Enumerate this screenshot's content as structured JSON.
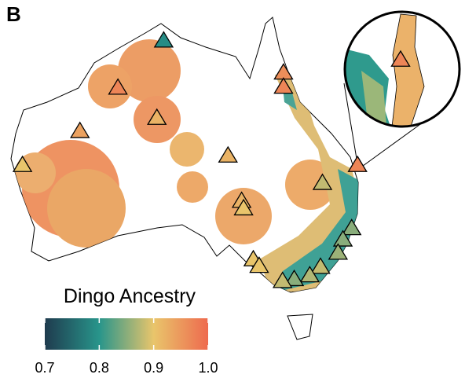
{
  "panel_label": "B",
  "legend": {
    "title": "Dingo Ancestry",
    "range": [
      0.7,
      1
    ],
    "ticks": [
      0.7,
      0.8,
      0.9,
      {
        "value": 1,
        "label": "1.0"
      }
    ],
    "colormap": [
      "#1f3b4e",
      "#28958b",
      "#e9c56b",
      "#ee6a4e"
    ]
  },
  "sites": [
    {
      "lon": 129.0,
      "lat": -11.8,
      "ancestry": 0.79
    },
    {
      "lon": 124.3,
      "lat": -16.8,
      "ancestry": 0.97
    },
    {
      "lon": 141.3,
      "lat": -15.2,
      "ancestry": 0.96
    },
    {
      "lon": 141.3,
      "lat": -16.7,
      "ancestry": 0.97
    },
    {
      "lon": 128.3,
      "lat": -20.0,
      "ancestry": 0.92
    },
    {
      "lon": 120.4,
      "lat": -21.4,
      "ancestry": 0.94
    },
    {
      "lon": 135.6,
      "lat": -24.0,
      "ancestry": 0.92
    },
    {
      "lon": 114.5,
      "lat": -25.0,
      "ancestry": 0.9
    },
    {
      "lon": 148.9,
      "lat": -25.0,
      "ancestry": 0.97
    },
    {
      "lon": 145.3,
      "lat": -26.9,
      "ancestry": 0.88
    },
    {
      "lon": 137.0,
      "lat": -28.8,
      "ancestry": 0.92
    },
    {
      "lon": 137.2,
      "lat": -29.6,
      "ancestry": 0.9
    },
    {
      "lon": 148.3,
      "lat": -31.7,
      "ancestry": 0.85
    },
    {
      "lon": 147.4,
      "lat": -32.9,
      "ancestry": 0.85
    },
    {
      "lon": 146.9,
      "lat": -34.3,
      "ancestry": 0.86
    },
    {
      "lon": 138.2,
      "lat": -35.0,
      "ancestry": 0.9
    },
    {
      "lon": 138.8,
      "lat": -35.7,
      "ancestry": 0.9
    },
    {
      "lon": 145.1,
      "lat": -35.8,
      "ancestry": 0.88
    },
    {
      "lon": 144.0,
      "lat": -36.7,
      "ancestry": 0.87
    },
    {
      "lon": 142.4,
      "lat": -37.1,
      "ancestry": 0.85
    },
    {
      "lon": 141.2,
      "lat": -37.3,
      "ancestry": 0.88
    }
  ]
}
